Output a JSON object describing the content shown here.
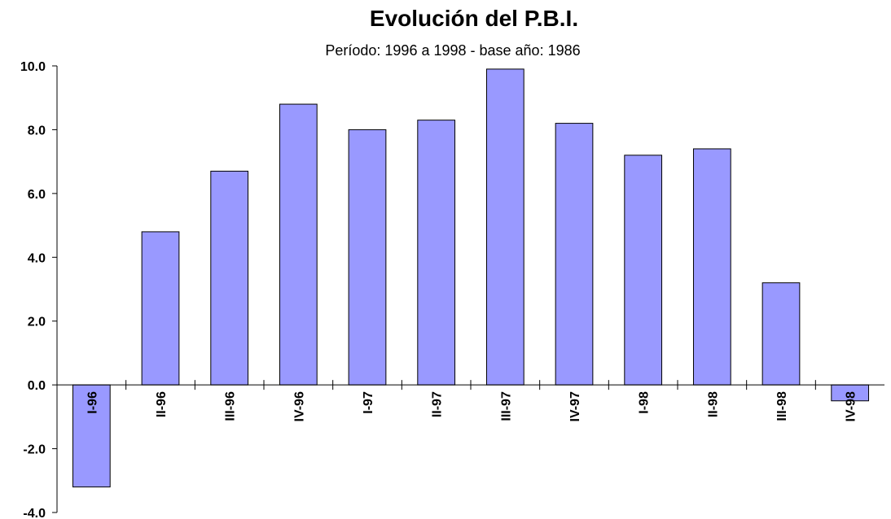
{
  "chart_data": {
    "type": "bar",
    "title": "Evolución del P.B.I.",
    "subtitle": "Período: 1996 a 1998 - base año: 1986",
    "categories": [
      "I-96",
      "II-96",
      "III-96",
      "IV-96",
      "I-97",
      "II-97",
      "III-97",
      "IV-97",
      "I-98",
      "II-98",
      "III-98",
      "IV-98"
    ],
    "values": [
      -3.2,
      4.8,
      6.7,
      8.8,
      8.0,
      8.3,
      9.9,
      8.2,
      7.2,
      7.4,
      3.2,
      -0.5
    ],
    "color": "#9999ff",
    "ylim": [
      -4,
      10
    ],
    "yticks": [
      {
        "value": -4,
        "label": "-4.0"
      },
      {
        "value": -2,
        "label": "-2.0"
      },
      {
        "value": 0,
        "label": "0.0"
      },
      {
        "value": 2,
        "label": "2.0"
      },
      {
        "value": 4,
        "label": "4.0"
      },
      {
        "value": 6,
        "label": "6.0"
      },
      {
        "value": 8,
        "label": "8.0"
      },
      {
        "value": 10,
        "label": "10.0"
      }
    ],
    "grid": false
  }
}
